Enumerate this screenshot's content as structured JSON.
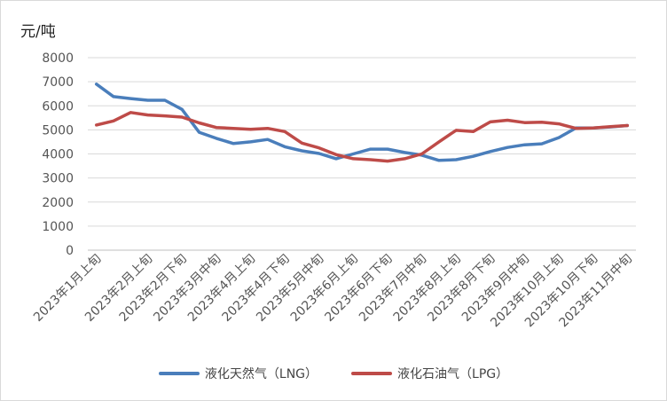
{
  "chart_data": {
    "type": "line",
    "unit_label": "元/吨",
    "ylim": [
      0,
      8000
    ],
    "yticks": [
      0,
      1000,
      2000,
      3000,
      4000,
      5000,
      6000,
      7000,
      8000
    ],
    "grid": true,
    "legend_position": "bottom",
    "x": [
      "2023年1月上旬",
      "2023年1月中旬",
      "2023年1月下旬",
      "2023年2月上旬",
      "2023年2月中旬",
      "2023年2月下旬",
      "2023年3月上旬",
      "2023年3月中旬",
      "2023年3月下旬",
      "2023年4月上旬",
      "2023年4月中旬",
      "2023年4月下旬",
      "2023年5月上旬",
      "2023年5月中旬",
      "2023年5月下旬",
      "2023年6月上旬",
      "2023年6月中旬",
      "2023年6月下旬",
      "2023年7月上旬",
      "2023年7月中旬",
      "2023年7月下旬",
      "2023年8月上旬",
      "2023年8月中旬",
      "2023年8月下旬",
      "2023年9月上旬",
      "2023年9月中旬",
      "2023年9月下旬",
      "2023年10月上旬",
      "2023年10月中旬",
      "2023年10月下旬",
      "2023年11月上旬",
      "2023年11月中旬"
    ],
    "tick_labels": [
      "2023年1月上旬",
      "2023年2月上旬",
      "2023年2月下旬",
      "2023年3月中旬",
      "2023年4月上旬",
      "2023年4月下旬",
      "2023年5月中旬",
      "2023年6月上旬",
      "2023年6月下旬",
      "2023年7月中旬",
      "2023年8月上旬",
      "2023年8月下旬",
      "2023年9月中旬",
      "2023年10月上旬",
      "2023年10月下旬",
      "2023年11月中旬"
    ],
    "series": [
      {
        "name": "液化天然气（LNG）",
        "color": "#4a7ebb",
        "values": [
          6900,
          6380,
          6300,
          6230,
          6230,
          5850,
          4900,
          4650,
          4430,
          4500,
          4600,
          4300,
          4130,
          4020,
          3800,
          4000,
          4200,
          4200,
          4060,
          3950,
          3730,
          3760,
          3900,
          4100,
          4270,
          4380,
          4420,
          4680,
          5080,
          5080,
          5120,
          5180
        ]
      },
      {
        "name": "液化石油气（LPG）",
        "color": "#be4b48",
        "values": [
          5200,
          5370,
          5720,
          5620,
          5580,
          5530,
          5290,
          5100,
          5060,
          5020,
          5060,
          4930,
          4450,
          4250,
          3970,
          3800,
          3760,
          3700,
          3800,
          4000,
          4500,
          4980,
          4930,
          5330,
          5400,
          5300,
          5320,
          5250,
          5060,
          5080,
          5130,
          5180
        ]
      }
    ]
  }
}
